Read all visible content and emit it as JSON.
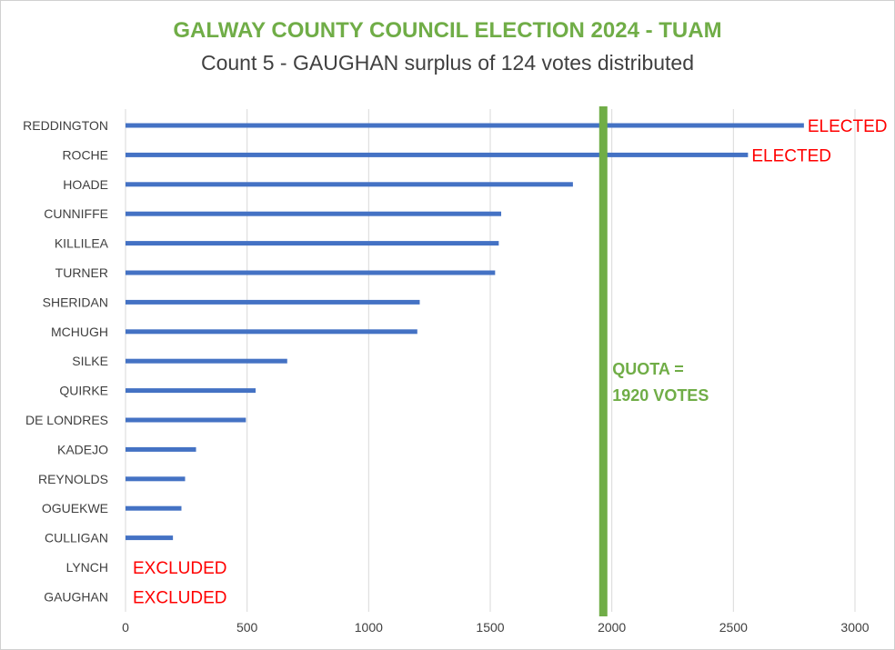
{
  "chart_data": {
    "type": "bar",
    "orientation": "horizontal",
    "title": "GALWAY COUNTY COUNCIL ELECTION 2024 - TUAM",
    "subtitle": "Count 5 - GAUGHAN surplus of 124 votes distributed",
    "categories": [
      "REDDINGTON",
      "ROCHE",
      "HOADE",
      "CUNNIFFE",
      "KILLILEA",
      "TURNER",
      "SHERIDAN",
      "MCHUGH",
      "SILKE",
      "QUIRKE",
      "DE LONDRES",
      "KADEJO",
      "REYNOLDS",
      "OGUEKWE",
      "CULLIGAN",
      "LYNCH",
      "GAUGHAN"
    ],
    "values": [
      2790,
      2560,
      1840,
      1545,
      1535,
      1520,
      1210,
      1200,
      665,
      535,
      495,
      290,
      245,
      230,
      195,
      0,
      0
    ],
    "status": [
      "ELECTED",
      "ELECTED",
      "",
      "",
      "",
      "",
      "",
      "",
      "",
      "",
      "",
      "",
      "",
      "",
      "",
      "EXCLUDED",
      "EXCLUDED"
    ],
    "xlim": [
      0,
      3000
    ],
    "ticks": [
      0,
      500,
      1000,
      1500,
      2000,
      2500,
      3000
    ],
    "grid": true,
    "quota": {
      "value": 1920,
      "label_line1": "QUOTA =",
      "label_line2": "1920 VOTES"
    },
    "colors": {
      "bar": "#4472c4",
      "quota": "#70ad47",
      "status": "#ff0000",
      "grid": "#d9d9d9",
      "title": "#70ad47",
      "text": "#404040"
    }
  }
}
